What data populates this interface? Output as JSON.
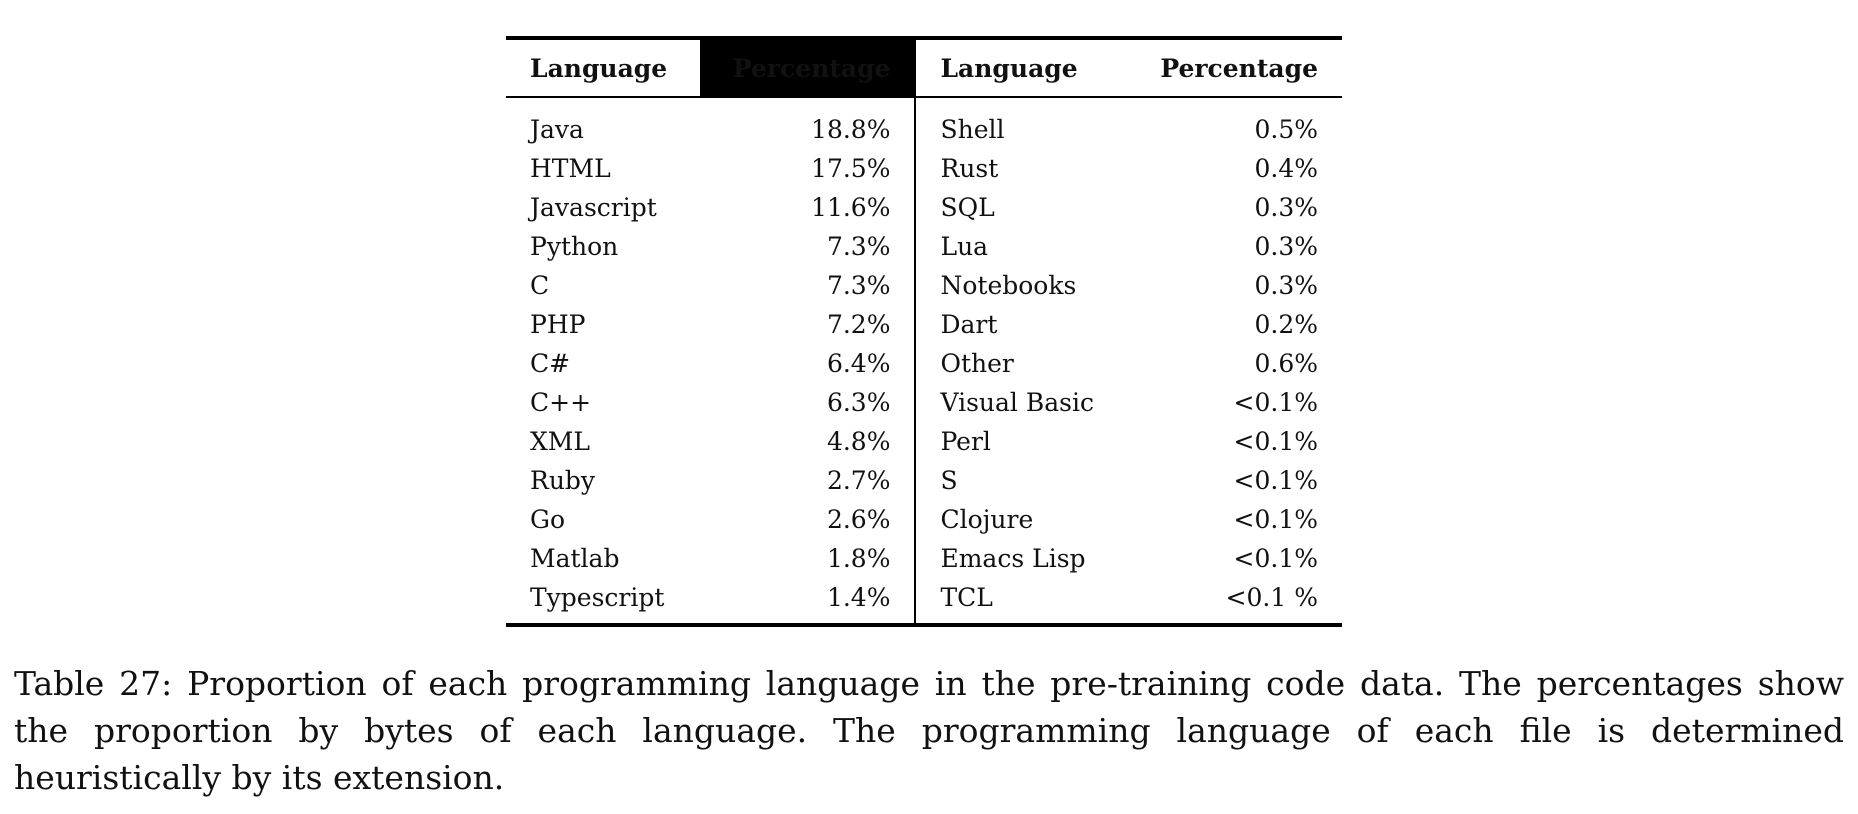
{
  "table": {
    "headers": {
      "language_left": "Language",
      "percentage_left": "Percentage",
      "language_right": "Language",
      "percentage_right": "Percentage"
    },
    "rows": [
      {
        "left_lang": "Java",
        "left_pct": "18.8%",
        "right_lang": "Shell",
        "right_pct": "0.5%"
      },
      {
        "left_lang": "HTML",
        "left_pct": "17.5%",
        "right_lang": "Rust",
        "right_pct": "0.4%"
      },
      {
        "left_lang": "Javascript",
        "left_pct": "11.6%",
        "right_lang": "SQL",
        "right_pct": "0.3%"
      },
      {
        "left_lang": "Python",
        "left_pct": "7.3%",
        "right_lang": "Lua",
        "right_pct": "0.3%"
      },
      {
        "left_lang": "C",
        "left_pct": "7.3%",
        "right_lang": "Notebooks",
        "right_pct": "0.3%"
      },
      {
        "left_lang": "PHP",
        "left_pct": "7.2%",
        "right_lang": "Dart",
        "right_pct": "0.2%"
      },
      {
        "left_lang": "C#",
        "left_pct": "6.4%",
        "right_lang": "Other",
        "right_pct": "0.6%"
      },
      {
        "left_lang": "C++",
        "left_pct": "6.3%",
        "right_lang": "Visual Basic",
        "right_pct": "<0.1%"
      },
      {
        "left_lang": "XML",
        "left_pct": "4.8%",
        "right_lang": "Perl",
        "right_pct": "<0.1%"
      },
      {
        "left_lang": "Ruby",
        "left_pct": "2.7%",
        "right_lang": "S",
        "right_pct": "<0.1%"
      },
      {
        "left_lang": "Go",
        "left_pct": "2.6%",
        "right_lang": "Clojure",
        "right_pct": "<0.1%"
      },
      {
        "left_lang": "Matlab",
        "left_pct": "1.8%",
        "right_lang": "Emacs Lisp",
        "right_pct": "<0.1%"
      },
      {
        "left_lang": "Typescript",
        "left_pct": "1.4%",
        "right_lang": "TCL",
        "right_pct": "<0.1 %"
      }
    ]
  },
  "caption": "Table 27: Proportion of each programming language in the pre-training code data. The percentages show the proportion by bytes of each language. The programming language of each file is determined heuristically by its extension."
}
